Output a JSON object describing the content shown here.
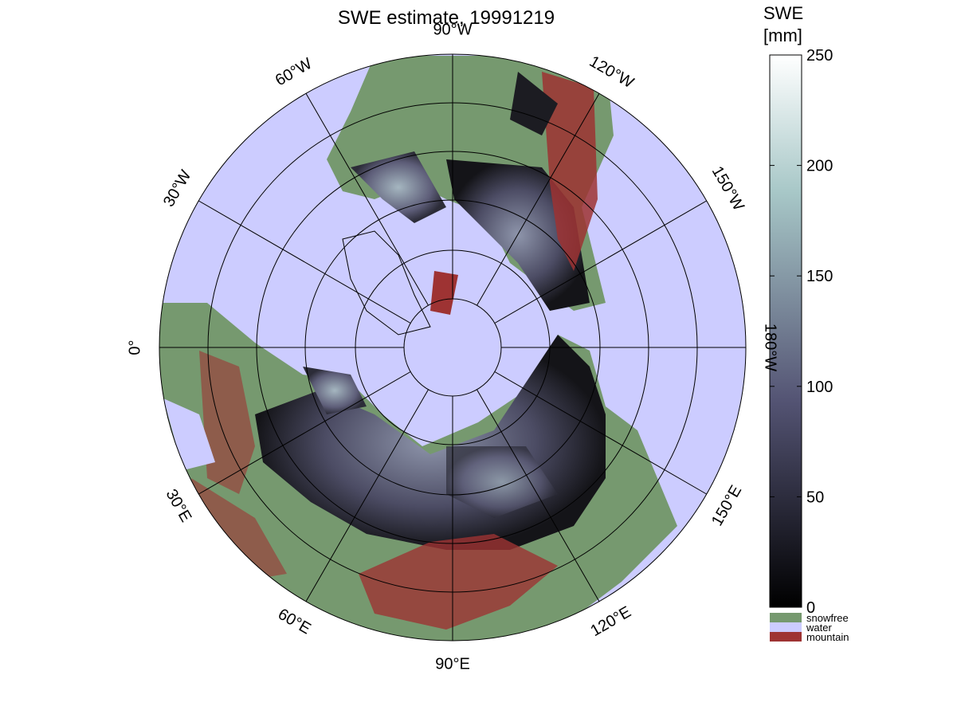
{
  "chart_data": {
    "type": "polar-map",
    "title": "SWE estimate, 19991219",
    "longitude_labels": [
      {
        "lon": 0,
        "label": "0°"
      },
      {
        "lon": 30,
        "label": "30°E"
      },
      {
        "lon": 60,
        "label": "60°E"
      },
      {
        "lon": 90,
        "label": "90°E"
      },
      {
        "lon": 120,
        "label": "120°E"
      },
      {
        "lon": 150,
        "label": "150°E"
      },
      {
        "lon": 180,
        "label": "180°W"
      },
      {
        "lon": -150,
        "label": "150°W"
      },
      {
        "lon": -120,
        "label": "120°W"
      },
      {
        "lon": -90,
        "label": "90°W"
      },
      {
        "lon": -60,
        "label": "60°W"
      },
      {
        "lon": -30,
        "label": "30°W"
      }
    ],
    "colorbar": {
      "label": [
        "SWE",
        "[mm]"
      ],
      "clim": [
        0,
        250
      ],
      "ticks": [
        0,
        50,
        100,
        150,
        200,
        250
      ]
    },
    "legend": [
      {
        "name": "snowfree",
        "color": "#76996f"
      },
      {
        "name": "water",
        "color": "#ccccff"
      },
      {
        "name": "mountain",
        "color": "#9e3333"
      }
    ]
  }
}
